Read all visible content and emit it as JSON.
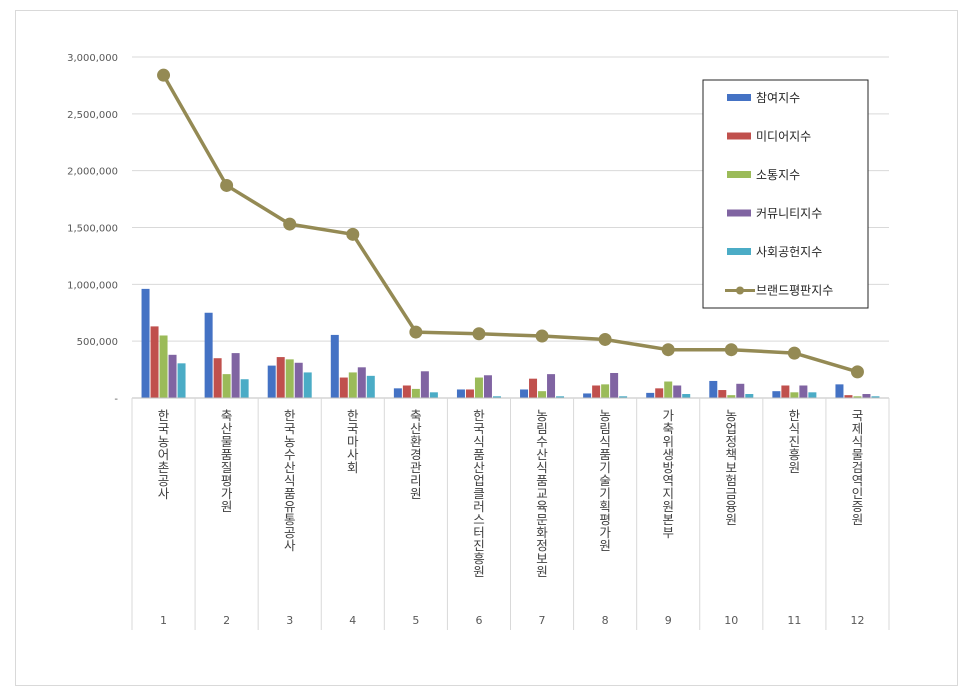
{
  "chart_data": {
    "type": "bar",
    "title": "",
    "xlabel": "",
    "ylabel": "",
    "ylim": [
      0,
      3000000
    ],
    "yticks": [
      0,
      500000,
      1000000,
      1500000,
      2000000,
      2500000,
      3000000
    ],
    "ytick_labels": [
      "-",
      "500,000",
      "1,000,000",
      "1,500,000",
      "2,000,000",
      "2,500,000",
      "3,000,000"
    ],
    "grid": true,
    "legend_position": "top-right",
    "categories": [
      "한국농어촌공사",
      "축산물품질평가원",
      "한국농수산식품유통공사",
      "한국마사회",
      "축산환경관리원",
      "한국식품산업클러스터진흥원",
      "농림수산식품교육문화정보원",
      "농림식품기술기획평가원",
      "가축위생방역지원본부",
      "농업정책보험금융원",
      "한식진흥원",
      "국제식물검역인증원"
    ],
    "ranks": [
      "1",
      "2",
      "3",
      "4",
      "5",
      "6",
      "7",
      "8",
      "9",
      "10",
      "11",
      "12"
    ],
    "series": [
      {
        "name": "참여지수",
        "type": "bar",
        "color": "#4472c4",
        "values": [
          960000,
          750000,
          285000,
          555000,
          85000,
          75000,
          75000,
          40000,
          45000,
          150000,
          60000,
          120000
        ]
      },
      {
        "name": "미디어지수",
        "type": "bar",
        "color": "#c0504d",
        "values": [
          630000,
          350000,
          360000,
          180000,
          110000,
          75000,
          170000,
          110000,
          85000,
          70000,
          110000,
          25000
        ]
      },
      {
        "name": "소통지수",
        "type": "bar",
        "color": "#9bbb59",
        "values": [
          550000,
          210000,
          340000,
          225000,
          80000,
          180000,
          60000,
          120000,
          145000,
          25000,
          50000,
          15000
        ]
      },
      {
        "name": "커뮤니티지수",
        "type": "bar",
        "color": "#8064a2",
        "values": [
          380000,
          395000,
          310000,
          270000,
          235000,
          200000,
          210000,
          220000,
          110000,
          125000,
          110000,
          35000
        ]
      },
      {
        "name": "사회공헌지수",
        "type": "bar",
        "color": "#4bacc6",
        "values": [
          305000,
          165000,
          225000,
          195000,
          50000,
          15000,
          15000,
          15000,
          35000,
          35000,
          50000,
          15000
        ]
      },
      {
        "name": "브랜드평판지수",
        "type": "line",
        "color": "#948a54",
        "values": [
          2840000,
          1870000,
          1530000,
          1440000,
          580000,
          565000,
          545000,
          515000,
          425000,
          425000,
          395000,
          230000
        ]
      }
    ]
  }
}
